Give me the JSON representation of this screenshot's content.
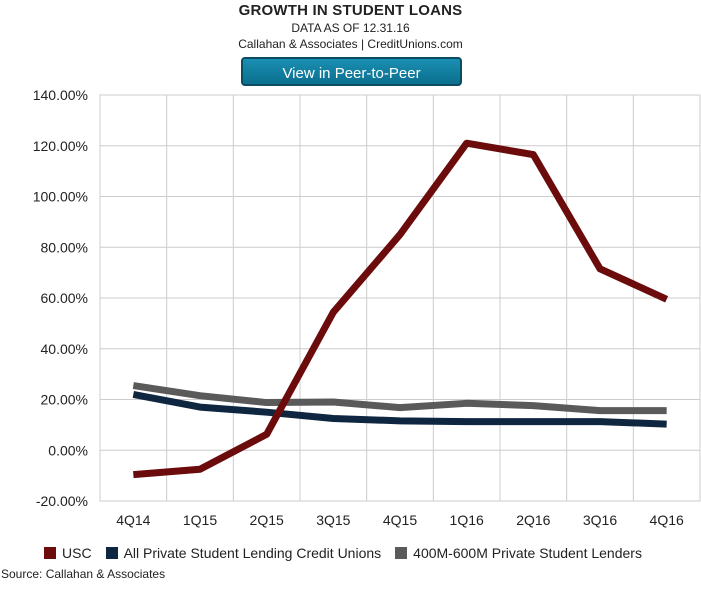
{
  "header": {
    "title": "GROWTH IN STUDENT LOANS",
    "subtitle": "DATA AS OF 12.31.16",
    "credit": "Callahan & Associates | CreditUnions.com",
    "button_label": "View in Peer-to-Peer"
  },
  "footer": {
    "source": "Source: Callahan & Associates"
  },
  "chart_data": {
    "type": "line",
    "title": "GROWTH IN STUDENT LOANS",
    "xlabel": "",
    "ylabel": "",
    "categories": [
      "4Q14",
      "1Q15",
      "2Q15",
      "3Q15",
      "4Q15",
      "1Q16",
      "2Q16",
      "3Q16",
      "4Q16"
    ],
    "ylim": [
      -20,
      140
    ],
    "yticks": [
      -20,
      0,
      20,
      40,
      60,
      80,
      100,
      120,
      140
    ],
    "ytick_labels": [
      "-20.00%",
      "0.00%",
      "20.00%",
      "40.00%",
      "60.00%",
      "80.00%",
      "100.00%",
      "120.00%",
      "140.00%"
    ],
    "grid": true,
    "legend_position": "bottom-left",
    "series": [
      {
        "name": "USC",
        "color": "#6b0b0b",
        "values": [
          -9.6,
          -7.5,
          6.3,
          54.4,
          85.0,
          121.0,
          116.5,
          71.5,
          59.5
        ]
      },
      {
        "name": "All Private Student Lending Credit Unions",
        "color": "#0f2640",
        "values": [
          22.0,
          17.0,
          15.0,
          12.5,
          11.6,
          11.3,
          11.3,
          11.3,
          10.3
        ]
      },
      {
        "name": "400M-600M Private Student Lenders",
        "color": "#5a5a5a",
        "values": [
          25.5,
          21.5,
          18.8,
          19.0,
          16.8,
          18.5,
          17.6,
          15.6,
          15.6
        ]
      }
    ]
  }
}
